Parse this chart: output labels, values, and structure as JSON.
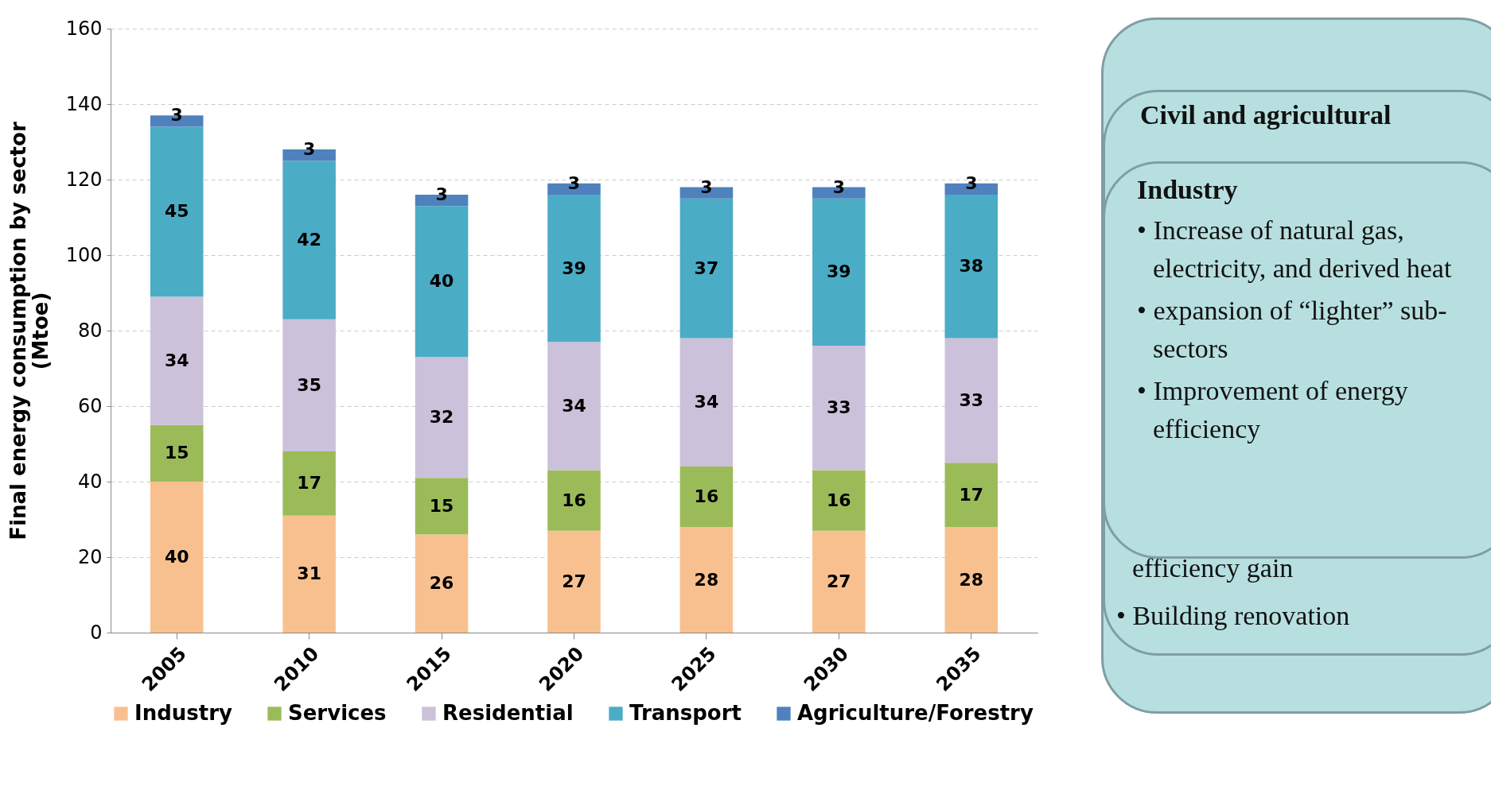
{
  "chart_data": {
    "type": "bar",
    "stacked": true,
    "ylabel": "Final energy consumption  by sector\n(Mtoe)",
    "categories": [
      "2005",
      "2010",
      "2015",
      "2020",
      "2025",
      "2030",
      "2035"
    ],
    "series": [
      {
        "name": "Industry",
        "color": "#f9c08f",
        "values": [
          40,
          31,
          26,
          27,
          28,
          27,
          28
        ]
      },
      {
        "name": "Services",
        "color": "#9bbb59",
        "values": [
          15,
          17,
          15,
          16,
          16,
          16,
          17
        ]
      },
      {
        "name": "Residential",
        "color": "#ccc1da",
        "values": [
          34,
          35,
          32,
          34,
          34,
          33,
          33
        ]
      },
      {
        "name": "Transport",
        "color": "#4bacc6",
        "values": [
          45,
          42,
          40,
          39,
          37,
          39,
          38
        ]
      },
      {
        "name": "Agriculture/Forestry",
        "color": "#4f81bd",
        "values": [
          3,
          3,
          3,
          3,
          3,
          3,
          3
        ]
      }
    ],
    "ylim": [
      0,
      160
    ],
    "yticks": [
      0,
      20,
      40,
      60,
      80,
      100,
      120,
      140,
      160
    ],
    "grid": "y",
    "legend": "bottom",
    "data_labels": true,
    "annotations": [
      "Civil and agricultural",
      "Industry",
      "• Increase of natural gas, electricity, and derived heat",
      "• expansion of “lighter” sub-sectors",
      "• Improvement of energy efficiency",
      "efficiency gain",
      "• Building renovation"
    ]
  }
}
